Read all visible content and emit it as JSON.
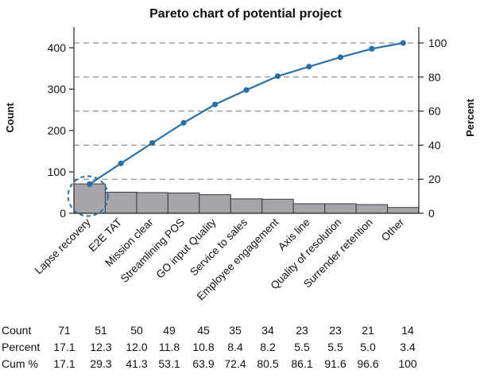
{
  "chart_data": {
    "type": "pareto",
    "title": "Pareto chart of potential project",
    "ylabel_left": "Count",
    "ylabel_right": "Percent",
    "ylim_left": [
      0,
      450
    ],
    "ylim_right": [
      0,
      100
    ],
    "yticks_left": [
      "0",
      "100",
      "200",
      "300",
      "400"
    ],
    "yticks_right": [
      "0",
      "20",
      "40",
      "60",
      "80",
      "100"
    ],
    "categories": [
      "Lapse recovery",
      "E2E TAT",
      "Mission clear",
      "Streamlining POS",
      "GO input Quality",
      "Service to sales",
      "Employee engagement",
      "Axis line",
      "Quality of resolution",
      "Surrender retention",
      "Other"
    ],
    "series": [
      {
        "name": "Count",
        "type": "bar",
        "values": [
          71,
          51,
          50,
          49,
          45,
          35,
          34,
          23,
          23,
          21,
          14
        ]
      },
      {
        "name": "Cum %",
        "type": "line",
        "values": [
          17.1,
          29.3,
          41.3,
          53.1,
          63.9,
          72.4,
          80.5,
          86.1,
          91.6,
          96.6,
          100
        ]
      }
    ],
    "grid": "dashed horizontal at right-axis ticks",
    "annotation": "dashed circle around first cumulative point",
    "colors": {
      "bar": "#a6a6aa",
      "bar_edge": "#3a3a3a",
      "line": "#2a6fa8",
      "highlight": "#2a6fa8",
      "grid": "#777777"
    },
    "table": {
      "row_labels": [
        "Count",
        "Percent",
        "Cum %"
      ],
      "rows": [
        [
          "71",
          "51",
          "50",
          "49",
          "45",
          "35",
          "34",
          "23",
          "23",
          "21",
          "14"
        ],
        [
          "17.1",
          "12.3",
          "12.0",
          "11.8",
          "10.8",
          "8.4",
          "8.2",
          "5.5",
          "5.5",
          "5.0",
          "3.4"
        ],
        [
          "17.1",
          "29.3",
          "41.3",
          "53.1",
          "63.9",
          "72.4",
          "80.5",
          "86.1",
          "91.6",
          "96.6",
          "100"
        ]
      ]
    }
  }
}
